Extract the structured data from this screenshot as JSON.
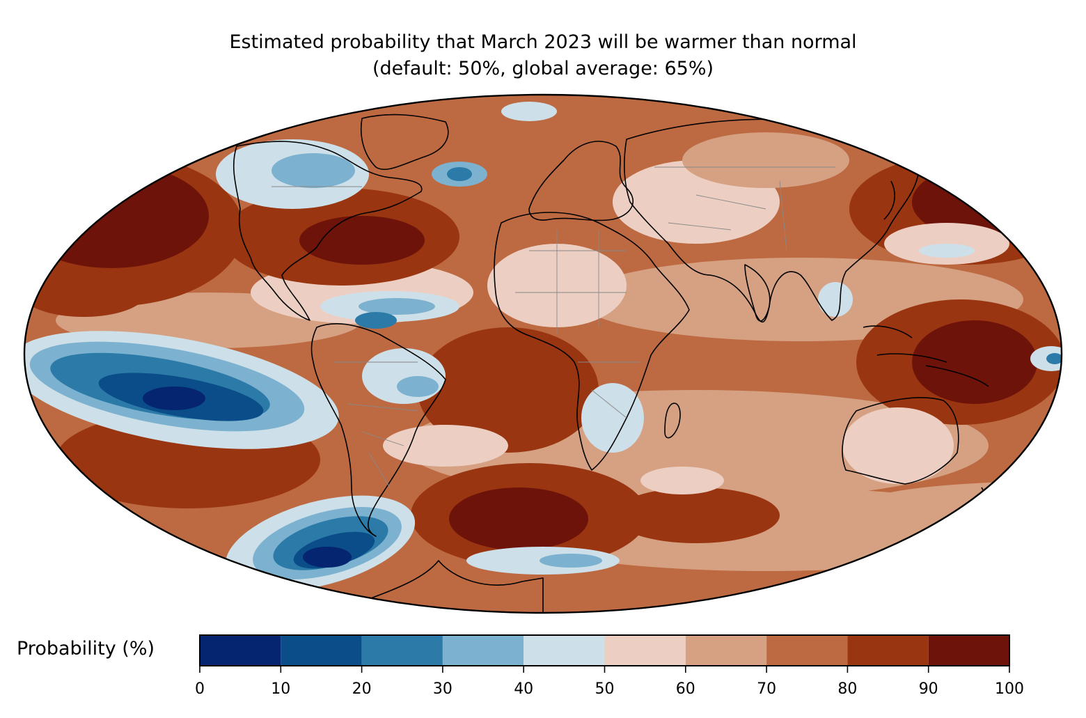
{
  "title": {
    "line1": "Estimated probability that March 2023 will be warmer than normal",
    "line2": "(default: 50%, global average: 65%)"
  },
  "colorbar": {
    "label": "Probability (%)",
    "ticks": [
      "0",
      "10",
      "20",
      "30",
      "40",
      "50",
      "60",
      "70",
      "80",
      "90",
      "100"
    ],
    "bins": [
      {
        "min": 0,
        "max": 10,
        "color": "#052570"
      },
      {
        "min": 10,
        "max": 20,
        "color": "#0a4d88"
      },
      {
        "min": 20,
        "max": 30,
        "color": "#2b7aa8"
      },
      {
        "min": 30,
        "max": 40,
        "color": "#7cb2cf"
      },
      {
        "min": 40,
        "max": 50,
        "color": "#cde0e9"
      },
      {
        "min": 50,
        "max": 60,
        "color": "#eccfc2"
      },
      {
        "min": 60,
        "max": 70,
        "color": "#d5a182"
      },
      {
        "min": 70,
        "max": 80,
        "color": "#bd6a42"
      },
      {
        "min": 80,
        "max": 90,
        "color": "#993510"
      },
      {
        "min": 90,
        "max": 100,
        "color": "#6d130a"
      }
    ]
  },
  "map": {
    "projection": "Mollweide",
    "feature": "probability of above-normal temperature (%)"
  }
}
